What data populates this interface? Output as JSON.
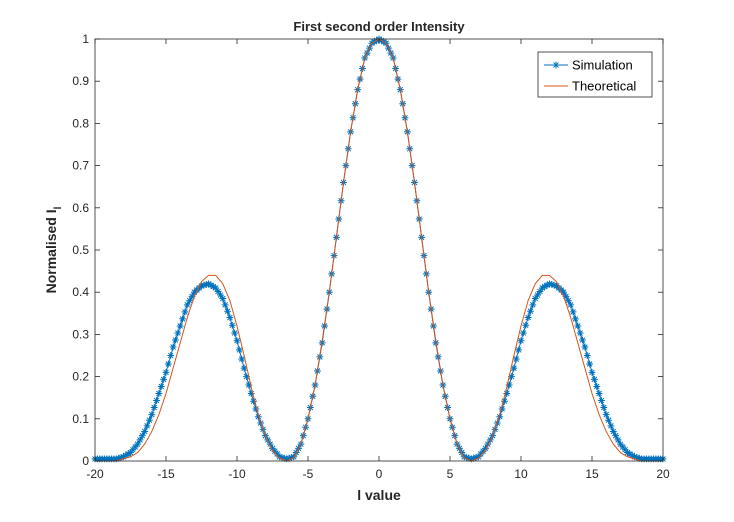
{
  "chart_data": {
    "type": "line",
    "title": "First second order Intensity",
    "xlabel": "l value",
    "ylabel_main": "Normalised I",
    "ylabel_sub": "l",
    "xlim": [
      -20,
      20
    ],
    "ylim": [
      0,
      1
    ],
    "xticks": [
      -20,
      -15,
      -10,
      -5,
      0,
      5,
      10,
      15,
      20
    ],
    "xtick_labels": [
      "-20",
      "-15",
      "-10",
      "-5",
      "0",
      "5",
      "10",
      "15",
      "20"
    ],
    "yticks": [
      0,
      0.1,
      0.2,
      0.3,
      0.4,
      0.5,
      0.6,
      0.7,
      0.8,
      0.9,
      1
    ],
    "ytick_labels": [
      "0",
      "0.1",
      "0.2",
      "0.3",
      "0.4",
      "0.5",
      "0.6",
      "0.7",
      "0.8",
      "0.9",
      "1"
    ],
    "grid": false,
    "legend_position": "top-right",
    "series": [
      {
        "name": "Simulation",
        "style": "line-with-star-markers",
        "color": "#0072BD",
        "x": [
          -20,
          -19.5,
          -19,
          -18.5,
          -18,
          -17.5,
          -17,
          -16.5,
          -16,
          -15.5,
          -15,
          -14.5,
          -14,
          -13.5,
          -13,
          -12.5,
          -12,
          -11.5,
          -11,
          -10.5,
          -10,
          -9.5,
          -9,
          -8.5,
          -8,
          -7.5,
          -7,
          -6.5,
          -6,
          -5.5,
          -5,
          -4.5,
          -4,
          -3.5,
          -3,
          -2.5,
          -2,
          -1.5,
          -1,
          -0.5,
          0,
          0.5,
          1,
          1.5,
          2,
          2.5,
          3,
          3.5,
          4,
          4.5,
          5,
          5.5,
          6,
          6.5,
          7,
          7.5,
          8,
          8.5,
          9,
          9.5,
          10,
          10.5,
          11,
          11.5,
          12,
          12.5,
          13,
          13.5,
          14,
          14.5,
          15,
          15.5,
          16,
          16.5,
          17,
          17.5,
          18,
          18.5,
          19,
          19.5,
          20
        ],
        "y": [
          0.005,
          0.005,
          0.005,
          0.005,
          0.01,
          0.02,
          0.04,
          0.07,
          0.11,
          0.16,
          0.21,
          0.27,
          0.32,
          0.37,
          0.4,
          0.415,
          0.42,
          0.41,
          0.385,
          0.34,
          0.285,
          0.22,
          0.16,
          0.105,
          0.06,
          0.03,
          0.01,
          0.005,
          0.01,
          0.04,
          0.1,
          0.18,
          0.28,
          0.4,
          0.53,
          0.66,
          0.78,
          0.88,
          0.955,
          0.99,
          1.0,
          0.99,
          0.955,
          0.88,
          0.78,
          0.66,
          0.53,
          0.4,
          0.28,
          0.18,
          0.1,
          0.04,
          0.01,
          0.005,
          0.01,
          0.03,
          0.06,
          0.105,
          0.16,
          0.22,
          0.285,
          0.34,
          0.385,
          0.41,
          0.42,
          0.415,
          0.4,
          0.37,
          0.32,
          0.27,
          0.21,
          0.16,
          0.11,
          0.07,
          0.04,
          0.02,
          0.01,
          0.005,
          0.005,
          0.005,
          0.005
        ]
      },
      {
        "name": "Theoretical",
        "style": "line",
        "color": "#D95319",
        "x": [
          -20,
          -19.5,
          -19,
          -18.5,
          -18,
          -17.5,
          -17,
          -16.5,
          -16,
          -15.5,
          -15,
          -14.5,
          -14,
          -13.5,
          -13,
          -12.5,
          -12,
          -11.5,
          -11,
          -10.5,
          -10,
          -9.5,
          -9,
          -8.5,
          -8,
          -7.5,
          -7,
          -6.5,
          -6,
          -5.5,
          -5,
          -4.5,
          -4,
          -3.5,
          -3,
          -2.5,
          -2,
          -1.5,
          -1,
          -0.5,
          0,
          0.5,
          1,
          1.5,
          2,
          2.5,
          3,
          3.5,
          4,
          4.5,
          5,
          5.5,
          6,
          6.5,
          7,
          7.5,
          8,
          8.5,
          9,
          9.5,
          10,
          10.5,
          11,
          11.5,
          12,
          12.5,
          13,
          13.5,
          14,
          14.5,
          15,
          15.5,
          16,
          16.5,
          17,
          17.5,
          18,
          18.5,
          19,
          19.5,
          20
        ],
        "y": [
          0.0,
          0.0,
          0.0,
          0.0,
          0.005,
          0.01,
          0.02,
          0.04,
          0.07,
          0.11,
          0.16,
          0.22,
          0.28,
          0.34,
          0.39,
          0.425,
          0.44,
          0.44,
          0.42,
          0.38,
          0.32,
          0.25,
          0.175,
          0.11,
          0.06,
          0.025,
          0.007,
          0.0,
          0.008,
          0.04,
          0.1,
          0.18,
          0.285,
          0.4,
          0.53,
          0.66,
          0.78,
          0.88,
          0.955,
          0.99,
          1.0,
          0.99,
          0.955,
          0.88,
          0.78,
          0.66,
          0.53,
          0.4,
          0.285,
          0.18,
          0.1,
          0.04,
          0.008,
          0.0,
          0.007,
          0.025,
          0.06,
          0.11,
          0.175,
          0.25,
          0.32,
          0.38,
          0.42,
          0.44,
          0.44,
          0.425,
          0.39,
          0.34,
          0.28,
          0.22,
          0.16,
          0.11,
          0.07,
          0.04,
          0.02,
          0.01,
          0.005,
          0.0,
          0.0,
          0.0,
          0.0
        ]
      }
    ]
  }
}
